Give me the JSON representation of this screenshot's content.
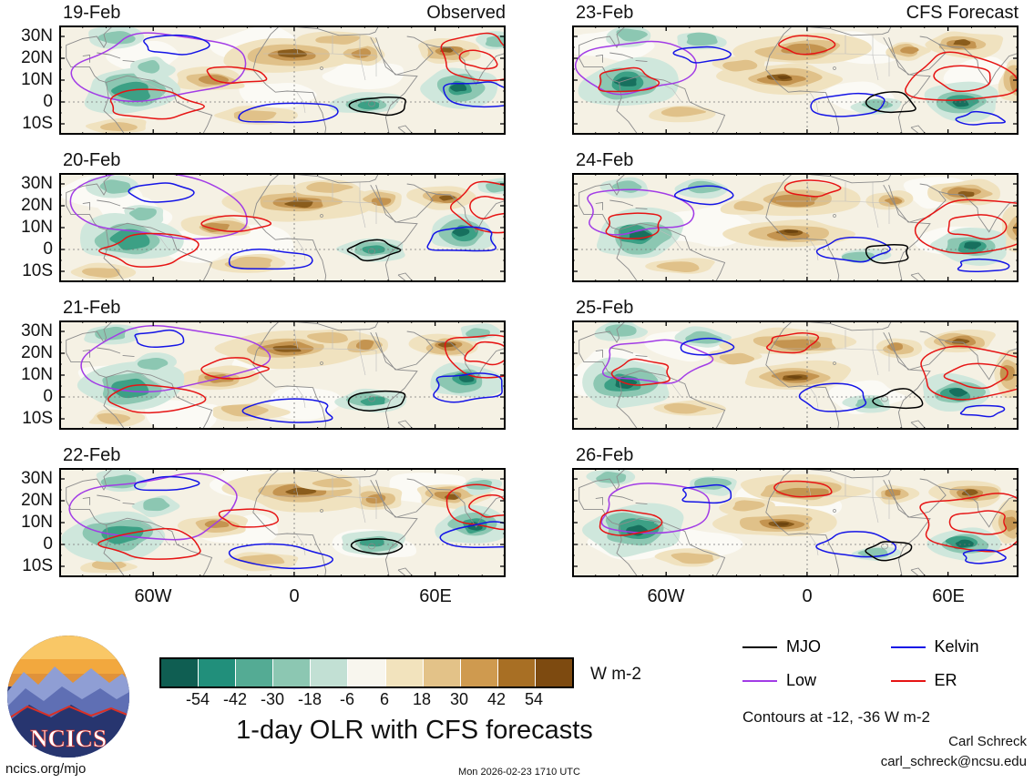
{
  "chart_data": {
    "type": "heatmap",
    "title": "1-day OLR with CFS forecasts",
    "units": "W m-2",
    "columns": [
      {
        "title": "Observed",
        "dates": [
          "19-Feb",
          "20-Feb",
          "21-Feb",
          "22-Feb"
        ]
      },
      {
        "title": "CFS Forecast",
        "dates": [
          "23-Feb",
          "24-Feb",
          "25-Feb",
          "26-Feb"
        ]
      }
    ],
    "lat_ticks": [
      "30N",
      "20N",
      "10N",
      "0",
      "10S"
    ],
    "lon_ticks": [
      "60W",
      "0",
      "60E"
    ],
    "colorbar_levels": [
      -54,
      -42,
      -30,
      -18,
      -6,
      6,
      18,
      30,
      42,
      54
    ],
    "colorbar_colors": [
      "#0f5e52",
      "#218f7b",
      "#54ab94",
      "#8cc7b2",
      "#c2e0d4",
      "#f8f6ee",
      "#f2e3bd",
      "#e3c288",
      "#cf9a4f",
      "#a86f24",
      "#7d4a10"
    ],
    "contours": [
      {
        "name": "MJO",
        "color": "#000000"
      },
      {
        "name": "Kelvin",
        "color": "#1414e6"
      },
      {
        "name": "Low",
        "color": "#a23ce6"
      },
      {
        "name": "ER",
        "color": "#e61414"
      }
    ],
    "contour_note": "Contours at -12, -36 W m-2"
  },
  "logo": {
    "text": "NCICS"
  },
  "credits": {
    "author": "Carl Schreck",
    "email": "carl_schreck@ncsu.edu",
    "url": "ncics.org/mjo",
    "timestamp": "Mon 2026-02-23 1710 UTC"
  }
}
